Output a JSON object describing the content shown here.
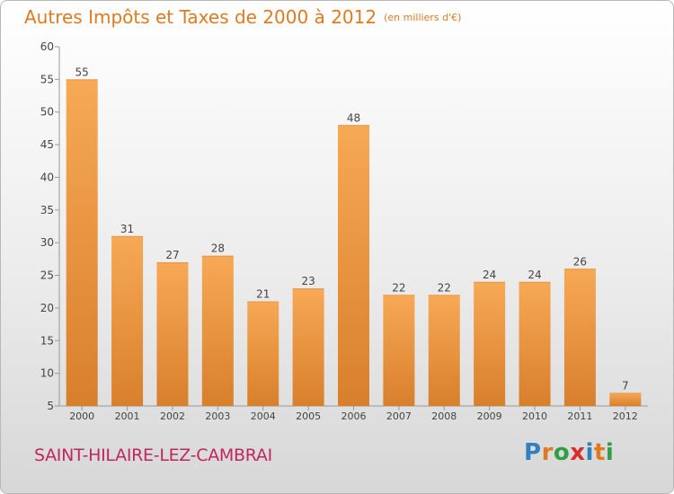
{
  "header": {
    "title": "Autres Impôts et Taxes de 2000 à 2012",
    "unit": "(en milliers d'€)"
  },
  "footer": {
    "commune": "SAINT-HILAIRE-LEZ-CAMBRAI",
    "brand_letters": [
      "P",
      "r",
      "o",
      "x",
      "i",
      "t",
      "i"
    ],
    "brand_colors": [
      "#2f7fc1",
      "#e07a22",
      "#2f9e44",
      "#d62d2d",
      "#2f7fc1",
      "#e07a22",
      "#2f9e44"
    ]
  },
  "colors": {
    "bar_top": "#f7a955",
    "bar_bottom": "#d87f2c",
    "title": "#e07a22",
    "commune": "#c02660",
    "axis": "#999999",
    "label": "#444444"
  },
  "chart_data": {
    "type": "bar",
    "categories": [
      "2000",
      "2001",
      "2002",
      "2003",
      "2004",
      "2005",
      "2006",
      "2007",
      "2008",
      "2009",
      "2010",
      "2011",
      "2012"
    ],
    "values": [
      55,
      31,
      27,
      28,
      21,
      23,
      48,
      22,
      22,
      24,
      24,
      26,
      7
    ],
    "title": "Autres Impôts et Taxes de 2000 à 2012",
    "xlabel": "",
    "ylabel": "",
    "ylim": [
      5,
      60
    ],
    "yticks": [
      5,
      10,
      15,
      20,
      25,
      30,
      35,
      40,
      45,
      50,
      55,
      60
    ],
    "grid": false,
    "data_labels": true
  }
}
